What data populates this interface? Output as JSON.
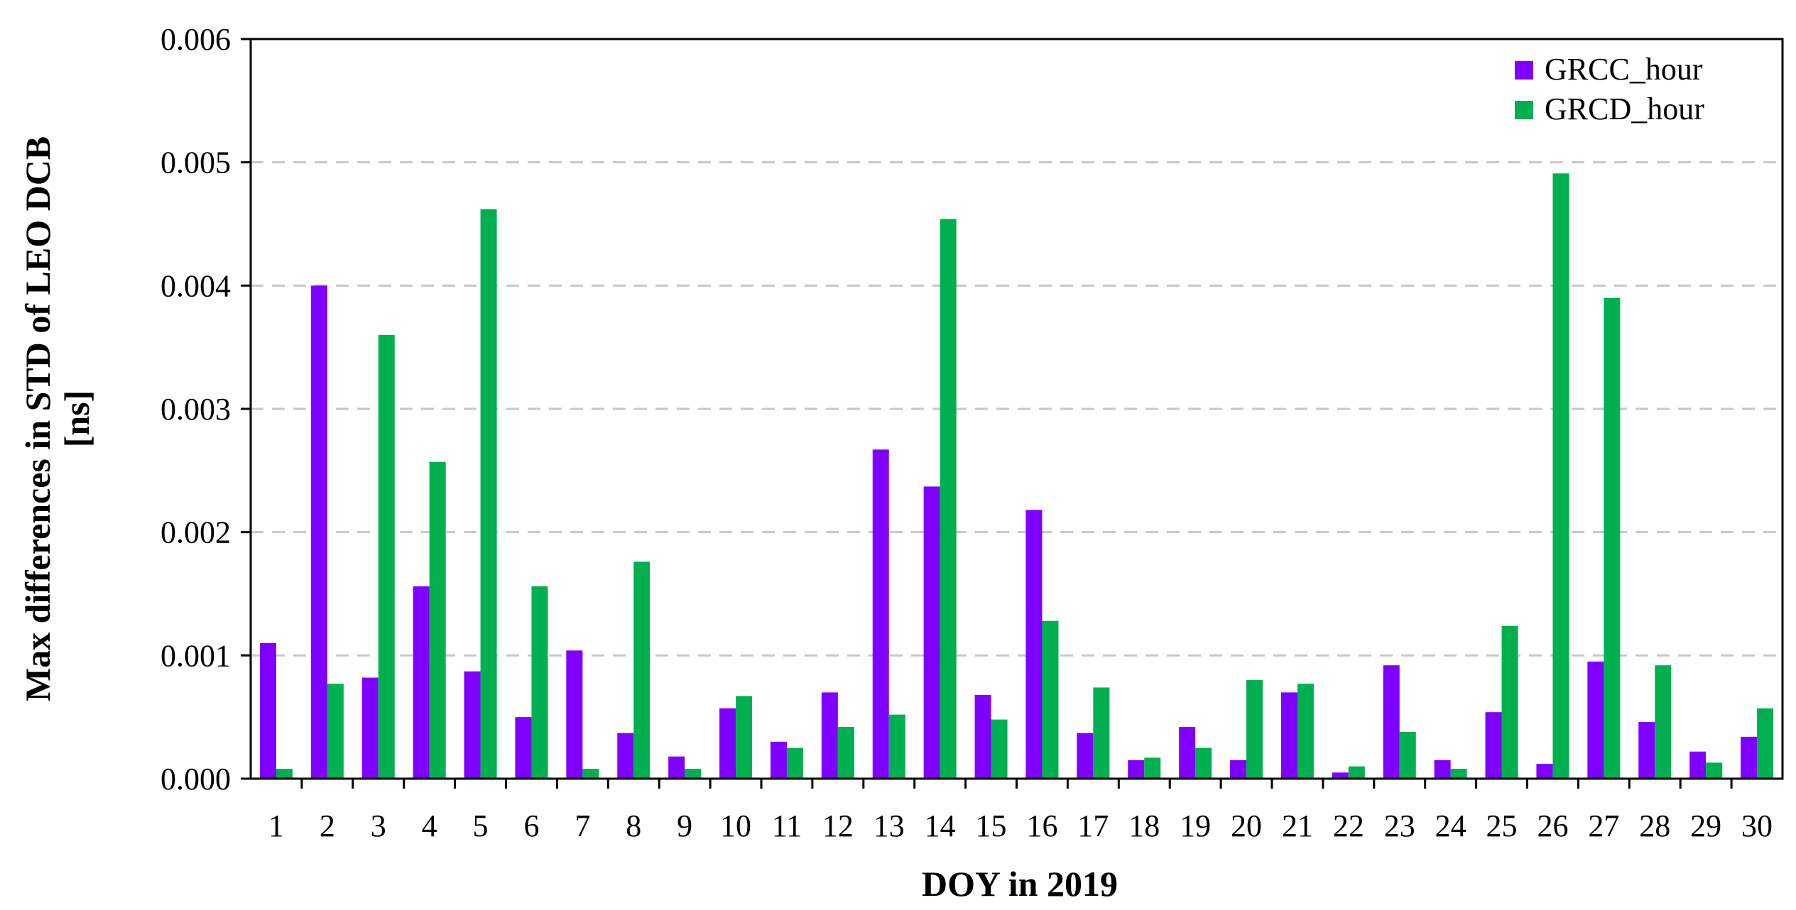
{
  "chart_data": {
    "type": "bar",
    "title": "",
    "xlabel": "DOY in 2019",
    "ylabel_line1": "Max differences in STD of LEO DCB",
    "ylabel_line2": "[ns]",
    "ylim": [
      0,
      0.006
    ],
    "yticks": [
      "0.000",
      "0.001",
      "0.002",
      "0.003",
      "0.004",
      "0.005",
      "0.006"
    ],
    "grid": "horizontal dashed",
    "legend_position": "top-right",
    "categories": [
      "1",
      "2",
      "3",
      "4",
      "5",
      "6",
      "7",
      "8",
      "9",
      "10",
      "11",
      "12",
      "13",
      "14",
      "15",
      "16",
      "17",
      "18",
      "19",
      "20",
      "21",
      "22",
      "23",
      "24",
      "25",
      "26",
      "27",
      "28",
      "29",
      "30"
    ],
    "series": [
      {
        "name": "GRCC_hour",
        "color": "#7f00ff",
        "values": [
          0.0011,
          0.004,
          0.00082,
          0.00156,
          0.00087,
          0.0005,
          0.00104,
          0.00037,
          0.00018,
          0.00057,
          0.0003,
          0.0007,
          0.00267,
          0.00237,
          0.00068,
          0.00218,
          0.00037,
          0.00015,
          0.00042,
          0.00015,
          0.0007,
          5e-05,
          0.00092,
          0.00015,
          0.00054,
          0.00012,
          0.00095,
          0.00046,
          0.00022,
          0.00034
        ]
      },
      {
        "name": "GRCD_hour",
        "color": "#00b050",
        "values": [
          8e-05,
          0.00077,
          0.0036,
          0.00257,
          0.00462,
          0.00156,
          8e-05,
          0.00176,
          8e-05,
          0.00067,
          0.00025,
          0.00042,
          0.00052,
          0.00454,
          0.00048,
          0.00128,
          0.00074,
          0.00017,
          0.00025,
          0.0008,
          0.00077,
          0.0001,
          0.00038,
          8e-05,
          0.00124,
          0.00491,
          0.0039,
          0.00092,
          0.00013,
          0.00057
        ]
      }
    ]
  }
}
